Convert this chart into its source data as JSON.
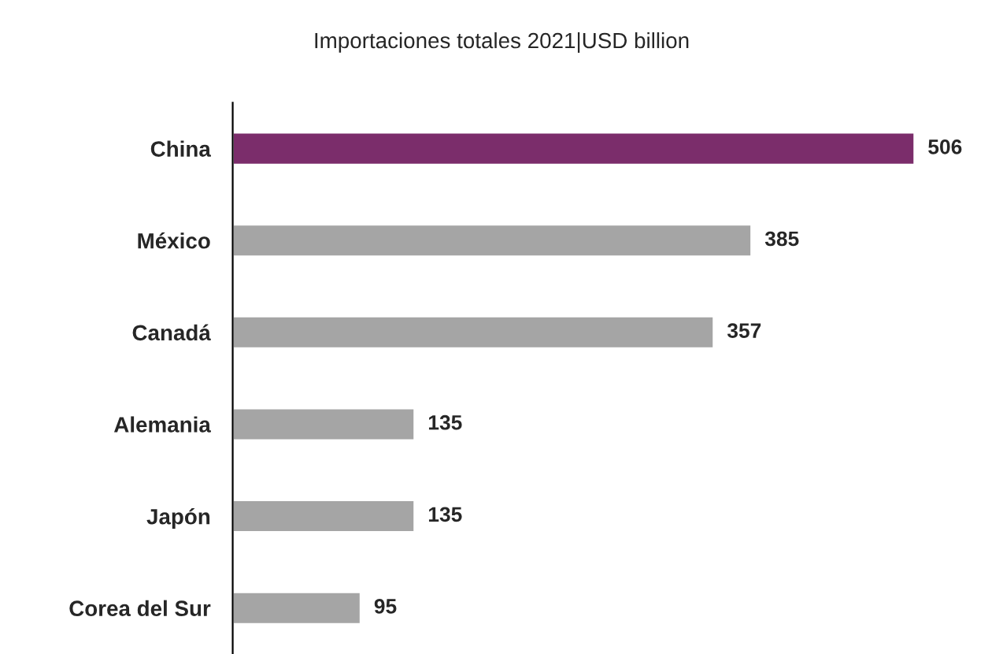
{
  "chart_data": {
    "type": "bar",
    "orientation": "horizontal",
    "title": "Importaciones totales 2021|USD billion",
    "categories": [
      "China",
      "México",
      "Canadá",
      "Alemania",
      "Japón",
      "Corea del Sur"
    ],
    "values": [
      506,
      385,
      357,
      135,
      135,
      95
    ],
    "colors": [
      "#7b2d6b",
      "#a5a5a5",
      "#a5a5a5",
      "#a5a5a5",
      "#a5a5a5",
      "#a5a5a5"
    ],
    "data_labels": true,
    "grid": false,
    "legend": false
  }
}
